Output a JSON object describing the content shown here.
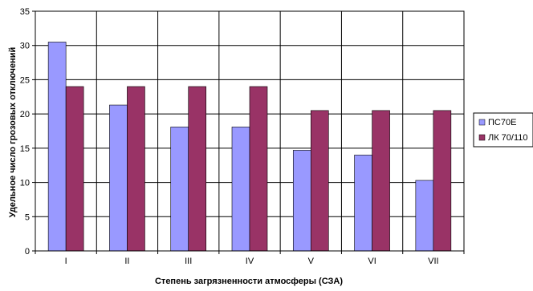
{
  "chart_data": {
    "type": "bar",
    "categories": [
      "I",
      "II",
      "III",
      "IV",
      "V",
      "VI",
      "VII"
    ],
    "series": [
      {
        "name": "ПС70Е",
        "color": "#9999ff",
        "values": [
          30.5,
          21.3,
          18.1,
          18.1,
          14.7,
          14.0,
          10.3
        ]
      },
      {
        "name": "ЛК 70/110",
        "color": "#993366",
        "values": [
          24.0,
          24.0,
          24.0,
          24.0,
          20.5,
          20.5,
          20.5
        ]
      }
    ],
    "xlabel": "Степень загрязненности атмосферы (СЗА)",
    "ylabel": "Удельное число грозовых отключений",
    "ylim": [
      0,
      35
    ],
    "yticks": [
      0,
      5,
      10,
      15,
      20,
      25,
      30,
      35
    ],
    "grid": true,
    "legend": "right"
  }
}
